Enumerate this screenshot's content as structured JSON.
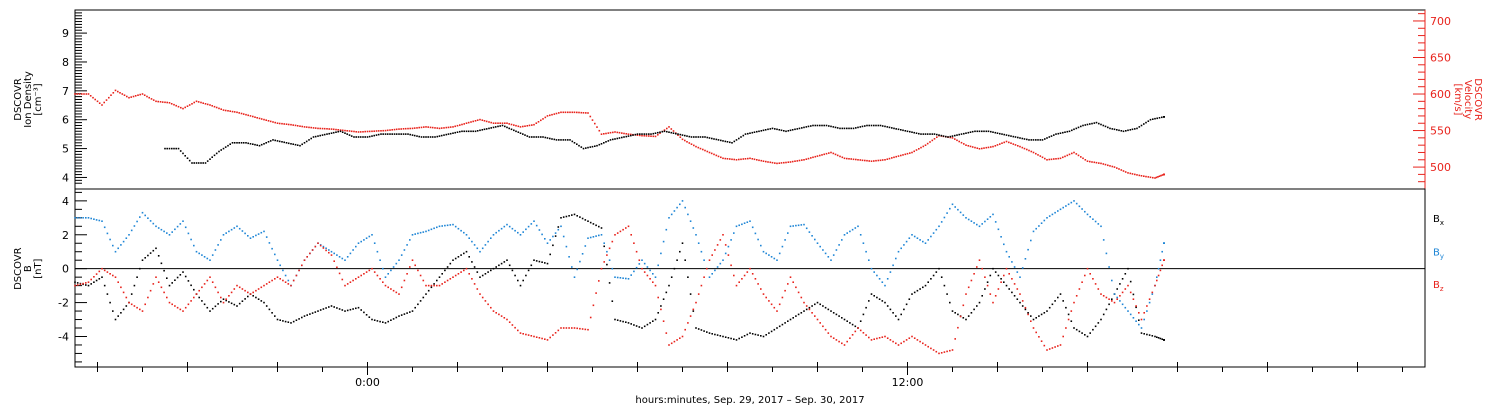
{
  "chart_data": [
    {
      "type": "scatter",
      "panel": "top",
      "ylabel_left": [
        "DSCOVR",
        "Ion Density",
        "[cm⁻³]"
      ],
      "ylabel_right": [
        "DSCOVR",
        "Velocity",
        "[km/s]"
      ],
      "yticks_left": [
        4,
        5,
        6,
        7,
        8,
        9
      ],
      "yticks_right": [
        500,
        550,
        600,
        650,
        700
      ],
      "ylim_left": [
        3.6,
        9.8
      ],
      "ylim_right": [
        470,
        715
      ],
      "series": [
        {
          "name": "Ion Density",
          "axis": "left",
          "color": "#000000",
          "x": [
            -4.5,
            -4.2,
            -3.9,
            -3.6,
            -3.3,
            -3.0,
            -2.7,
            -2.4,
            -2.1,
            -1.8,
            -1.5,
            -1.2,
            -0.9,
            -0.6,
            -0.3,
            0.0,
            0.3,
            0.6,
            0.9,
            1.2,
            1.5,
            1.8,
            2.1,
            2.4,
            2.7,
            3.0,
            3.3,
            3.6,
            3.9,
            4.2,
            4.5,
            4.8,
            5.1,
            5.4,
            5.7,
            6.0,
            6.3,
            6.6,
            6.9,
            7.2,
            7.5,
            7.8,
            8.1,
            8.4,
            8.7,
            9.0,
            9.3,
            9.6,
            9.9,
            10.2,
            10.5,
            10.8,
            11.1,
            11.4,
            11.7,
            12.0,
            12.3,
            12.6,
            12.9,
            13.2,
            13.5,
            13.8,
            14.1,
            14.4,
            14.7,
            15.0,
            15.3,
            15.6,
            15.9,
            16.2,
            16.5,
            16.8,
            17.1,
            17.4,
            17.7
          ],
          "y": [
            5.0,
            5.0,
            4.5,
            4.5,
            4.9,
            5.2,
            5.2,
            5.1,
            5.3,
            5.2,
            5.1,
            5.4,
            5.5,
            5.6,
            5.4,
            5.4,
            5.5,
            5.5,
            5.5,
            5.4,
            5.4,
            5.5,
            5.6,
            5.6,
            5.7,
            5.8,
            5.6,
            5.4,
            5.4,
            5.3,
            5.3,
            5.0,
            5.1,
            5.3,
            5.4,
            5.5,
            5.5,
            5.6,
            5.5,
            5.4,
            5.4,
            5.3,
            5.2,
            5.5,
            5.6,
            5.7,
            5.6,
            5.7,
            5.8,
            5.8,
            5.7,
            5.7,
            5.8,
            5.8,
            5.7,
            5.6,
            5.5,
            5.5,
            5.4,
            5.5,
            5.6,
            5.6,
            5.5,
            5.4,
            5.3,
            5.3,
            5.5,
            5.6,
            5.8,
            5.9,
            5.7,
            5.6,
            5.7,
            6.0,
            6.1
          ]
        },
        {
          "name": "Velocity",
          "axis": "right",
          "color": "#e8231c",
          "x": [
            -6.5,
            -6.2,
            -5.9,
            -5.6,
            -5.3,
            -5.0,
            -4.7,
            -4.4,
            -4.1,
            -3.8,
            -3.5,
            -3.2,
            -2.9,
            -2.6,
            -2.3,
            -2.0,
            -1.7,
            -1.4,
            -1.1,
            -0.8,
            -0.5,
            -0.2,
            0.1,
            0.4,
            0.7,
            1.0,
            1.3,
            1.6,
            1.9,
            2.2,
            2.5,
            2.8,
            3.1,
            3.4,
            3.7,
            4.0,
            4.3,
            4.6,
            4.9,
            5.2,
            5.5,
            5.8,
            6.1,
            6.4,
            6.7,
            7.0,
            7.3,
            7.6,
            7.9,
            8.2,
            8.5,
            8.8,
            9.1,
            9.4,
            9.7,
            10.0,
            10.3,
            10.6,
            10.9,
            11.2,
            11.5,
            11.8,
            12.1,
            12.4,
            12.7,
            13.0,
            13.3,
            13.6,
            13.9,
            14.2,
            14.5,
            14.8,
            15.1,
            15.4,
            15.7,
            16.0,
            16.3,
            16.6,
            16.9,
            17.2,
            17.5,
            17.7
          ],
          "y": [
            600,
            600,
            585,
            605,
            595,
            600,
            590,
            588,
            580,
            590,
            585,
            578,
            575,
            570,
            565,
            560,
            558,
            555,
            553,
            552,
            550,
            548,
            549,
            550,
            552,
            553,
            555,
            553,
            555,
            560,
            565,
            560,
            560,
            555,
            558,
            570,
            575,
            575,
            574,
            545,
            548,
            545,
            543,
            542,
            555,
            538,
            528,
            520,
            512,
            510,
            512,
            508,
            505,
            507,
            510,
            515,
            520,
            512,
            510,
            508,
            510,
            515,
            520,
            530,
            543,
            540,
            530,
            525,
            528,
            535,
            528,
            520,
            510,
            512,
            520,
            508,
            505,
            500,
            492,
            488,
            485,
            490
          ]
        }
      ]
    },
    {
      "type": "scatter",
      "panel": "bottom",
      "ylabel": [
        "DSCOVR",
        "B",
        "[nT]"
      ],
      "yticks": [
        -4,
        -2,
        0,
        2,
        4
      ],
      "ylim": [
        -5.8,
        4.7
      ],
      "zero_line": true,
      "series": [
        {
          "name": "Bx",
          "color": "#000000",
          "x": [
            -6.5,
            -6.2,
            -5.9,
            -5.6,
            -5.3,
            -5.0,
            -4.7,
            -4.4,
            -4.1,
            -3.8,
            -3.5,
            -3.2,
            -2.9,
            -2.6,
            -2.3,
            -2.0,
            -1.7,
            -1.4,
            -1.1,
            -0.8,
            -0.5,
            -0.2,
            0.1,
            0.4,
            0.7,
            1.0,
            1.3,
            1.6,
            1.9,
            2.2,
            2.5,
            2.8,
            3.1,
            3.4,
            3.7,
            4.0,
            4.3,
            4.6,
            4.9,
            5.2,
            5.5,
            5.8,
            6.1,
            6.4,
            6.7,
            7.0,
            7.3,
            7.6,
            7.9,
            8.2,
            8.5,
            8.8,
            9.1,
            9.4,
            9.7,
            10.0,
            10.3,
            10.6,
            10.9,
            11.2,
            11.5,
            11.8,
            12.1,
            12.4,
            12.7,
            13.0,
            13.3,
            13.6,
            13.9,
            14.2,
            14.5,
            14.8,
            15.1,
            15.4,
            15.7,
            16.0,
            16.3,
            16.6,
            16.9,
            17.2,
            17.5,
            17.7
          ],
          "y": [
            -0.8,
            -1.0,
            -0.5,
            -3.0,
            -2.0,
            0.5,
            1.2,
            -1.0,
            -0.2,
            -1.5,
            -2.5,
            -1.8,
            -2.2,
            -1.5,
            -2.0,
            -3.0,
            -3.2,
            -2.8,
            -2.5,
            -2.2,
            -2.5,
            -2.3,
            -3.0,
            -3.2,
            -2.8,
            -2.5,
            -1.5,
            -0.5,
            0.5,
            1.0,
            -0.5,
            0.0,
            0.5,
            -1.0,
            0.5,
            0.3,
            3.0,
            3.2,
            2.8,
            2.4,
            -3.0,
            -3.2,
            -3.5,
            -3.0,
            -1.0,
            1.5,
            -3.5,
            -3.8,
            -4.0,
            -4.2,
            -3.8,
            -4.0,
            -3.5,
            -3.0,
            -2.5,
            -2.0,
            -2.5,
            -3.0,
            -3.5,
            -1.5,
            -2.0,
            -3.0,
            -1.5,
            -1.0,
            0.0,
            -2.5,
            -3.0,
            -2.0,
            0.0,
            -1.0,
            -2.0,
            -3.0,
            -2.5,
            -1.5,
            -3.5,
            -4.0,
            -3.0,
            -1.5,
            0.0,
            -3.8,
            -4.0,
            -4.2
          ]
        },
        {
          "name": "By",
          "color": "#1f86d6",
          "x": [
            -6.5,
            -6.2,
            -5.9,
            -5.6,
            -5.3,
            -5.0,
            -4.7,
            -4.4,
            -4.1,
            -3.8,
            -3.5,
            -3.2,
            -2.9,
            -2.6,
            -2.3,
            -2.0,
            -1.7,
            -1.4,
            -1.1,
            -0.8,
            -0.5,
            -0.2,
            0.1,
            0.4,
            0.7,
            1.0,
            1.3,
            1.6,
            1.9,
            2.2,
            2.5,
            2.8,
            3.1,
            3.4,
            3.7,
            4.0,
            4.3,
            4.6,
            4.9,
            5.2,
            5.5,
            5.8,
            6.1,
            6.4,
            6.7,
            7.0,
            7.3,
            7.6,
            7.9,
            8.2,
            8.5,
            8.8,
            9.1,
            9.4,
            9.7,
            10.0,
            10.3,
            10.6,
            10.9,
            11.2,
            11.5,
            11.8,
            12.1,
            12.4,
            12.7,
            13.0,
            13.3,
            13.6,
            13.9,
            14.2,
            14.5,
            14.8,
            15.1,
            15.4,
            15.7,
            16.0,
            16.3,
            16.6,
            16.9,
            17.2,
            17.5,
            17.7
          ],
          "y": [
            3.0,
            3.0,
            2.8,
            1.0,
            2.0,
            3.3,
            2.5,
            2.0,
            2.8,
            1.0,
            0.5,
            2.0,
            2.5,
            1.8,
            2.2,
            0.5,
            -1.0,
            0.5,
            1.5,
            1.0,
            0.5,
            1.5,
            2.0,
            -0.5,
            0.5,
            2.0,
            2.2,
            2.5,
            2.6,
            2.0,
            1.0,
            2.0,
            2.6,
            2.0,
            2.8,
            1.5,
            2.5,
            -0.5,
            1.8,
            2.0,
            -0.5,
            -0.6,
            0.5,
            -0.5,
            3.0,
            4.0,
            2.0,
            -0.5,
            0.5,
            2.5,
            2.8,
            1.0,
            0.5,
            2.5,
            2.6,
            1.5,
            0.5,
            2.0,
            2.5,
            0.0,
            -1.0,
            1.0,
            2.0,
            1.5,
            2.5,
            3.8,
            3.0,
            2.5,
            3.2,
            1.0,
            -0.5,
            2.2,
            3.0,
            3.5,
            4.0,
            3.2,
            2.5,
            -1.5,
            -2.5,
            -3.5,
            -1.0,
            1.5
          ]
        },
        {
          "name": "Bz",
          "color": "#e8231c",
          "x": [
            -6.5,
            -6.2,
            -5.9,
            -5.6,
            -5.3,
            -5.0,
            -4.7,
            -4.4,
            -4.1,
            -3.8,
            -3.5,
            -3.2,
            -2.9,
            -2.6,
            -2.3,
            -2.0,
            -1.7,
            -1.4,
            -1.1,
            -0.8,
            -0.5,
            -0.2,
            0.1,
            0.4,
            0.7,
            1.0,
            1.3,
            1.6,
            1.9,
            2.2,
            2.5,
            2.8,
            3.1,
            3.4,
            3.7,
            4.0,
            4.3,
            4.6,
            4.9,
            5.2,
            5.5,
            5.8,
            6.1,
            6.4,
            6.7,
            7.0,
            7.3,
            7.6,
            7.9,
            8.2,
            8.5,
            8.8,
            9.1,
            9.4,
            9.7,
            10.0,
            10.3,
            10.6,
            10.9,
            11.2,
            11.5,
            11.8,
            12.1,
            12.4,
            12.7,
            13.0,
            13.3,
            13.6,
            13.9,
            14.2,
            14.5,
            14.8,
            15.1,
            15.4,
            15.7,
            16.0,
            16.3,
            16.6,
            16.9,
            17.2,
            17.5,
            17.7
          ],
          "y": [
            -1.0,
            -0.8,
            0.0,
            -0.5,
            -2.0,
            -2.5,
            -0.5,
            -2.0,
            -2.5,
            -1.5,
            -0.5,
            -2.0,
            -1.0,
            -1.5,
            -1.0,
            -0.5,
            -1.0,
            0.5,
            1.5,
            0.8,
            -1.0,
            -0.5,
            0.0,
            -1.0,
            -1.5,
            0.5,
            -1.0,
            -1.0,
            -0.5,
            0.0,
            -1.5,
            -2.5,
            -3.0,
            -3.8,
            -4.0,
            -4.2,
            -3.5,
            -3.5,
            -3.6,
            0.0,
            2.0,
            2.5,
            0.0,
            -1.0,
            -4.5,
            -4.0,
            -2.0,
            0.5,
            2.0,
            -1.0,
            0.0,
            -1.5,
            -2.5,
            -0.5,
            -2.0,
            -3.0,
            -4.0,
            -4.5,
            -3.5,
            -4.2,
            -4.0,
            -4.5,
            -4.0,
            -4.5,
            -5.0,
            -4.8,
            -1.5,
            0.5,
            -2.0,
            0.0,
            -1.5,
            -3.5,
            -4.8,
            -4.5,
            -2.0,
            0.0,
            -1.5,
            -2.0,
            -1.0,
            -3.0,
            -1.0,
            0.5
          ]
        }
      ],
      "legend": [
        {
          "label": "B",
          "sub": "x",
          "color": "#000000"
        },
        {
          "label": "B",
          "sub": "y",
          "color": "#1f86d6"
        },
        {
          "label": "B",
          "sub": "z",
          "color": "#e8231c"
        }
      ]
    }
  ],
  "x_axis": {
    "tick_labels": [
      "0:00",
      "12:00"
    ],
    "tick_values": [
      0,
      12
    ],
    "xlim": [
      -6.5,
      23.5
    ],
    "xlabel": "hours:minutes, Sep. 29, 2017 – Sep. 30, 2017"
  }
}
